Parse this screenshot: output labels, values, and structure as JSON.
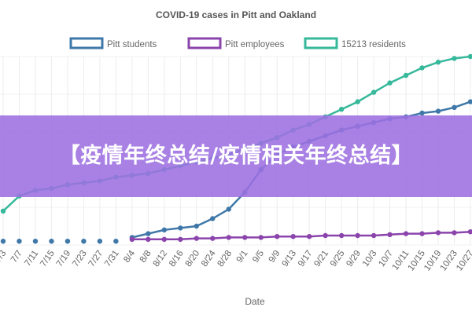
{
  "chart_data": {
    "type": "line",
    "title": "COVID-19 cases in Pitt and Oakland",
    "xlabel": "Date",
    "ylabel": "",
    "legend_position": "top",
    "grid": true,
    "categories": [
      "7/3",
      "7/7",
      "7/11",
      "7/15",
      "7/19",
      "7/23",
      "7/27",
      "7/31",
      "8/4",
      "8/8",
      "8/12",
      "8/16",
      "8/20",
      "8/24",
      "8/28",
      "9/1",
      "9/5",
      "9/9",
      "9/13",
      "9/17",
      "9/21",
      "9/25",
      "9/29",
      "10/3",
      "10/7",
      "10/11",
      "10/15",
      "10/19",
      "10/23",
      "10/27"
    ],
    "ylim": [
      0,
      100
    ],
    "series": [
      {
        "name": "Pitt students",
        "color": "#3f78a8",
        "values": [
          2,
          2,
          2,
          2,
          2,
          2,
          2,
          2,
          4,
          6,
          8,
          9,
          10,
          14,
          19,
          28,
          40,
          48,
          52,
          55,
          58,
          61,
          63,
          65,
          67,
          68,
          70,
          71,
          73,
          76
        ]
      },
      {
        "name": "Pitt employees",
        "color": "#8b44ac",
        "values": [
          null,
          null,
          null,
          null,
          null,
          null,
          null,
          null,
          3,
          3,
          3,
          3,
          3.5,
          3.5,
          4,
          4,
          4,
          4.5,
          4.5,
          4.5,
          5,
          5,
          5,
          5,
          5.5,
          6,
          6,
          6.5,
          6.5,
          7
        ]
      },
      {
        "name": "15213 residents",
        "color": "#36b89b",
        "values": [
          18,
          26,
          29,
          30,
          32,
          33,
          34,
          36,
          37,
          38,
          40,
          42,
          44,
          46,
          48,
          51,
          54,
          57,
          61,
          64,
          68,
          72,
          76,
          81,
          86,
          90,
          94,
          97,
          99,
          100
        ]
      }
    ]
  },
  "overlay": {
    "banner_text": "【疫情年终总结/疫情相关年终总结】"
  }
}
